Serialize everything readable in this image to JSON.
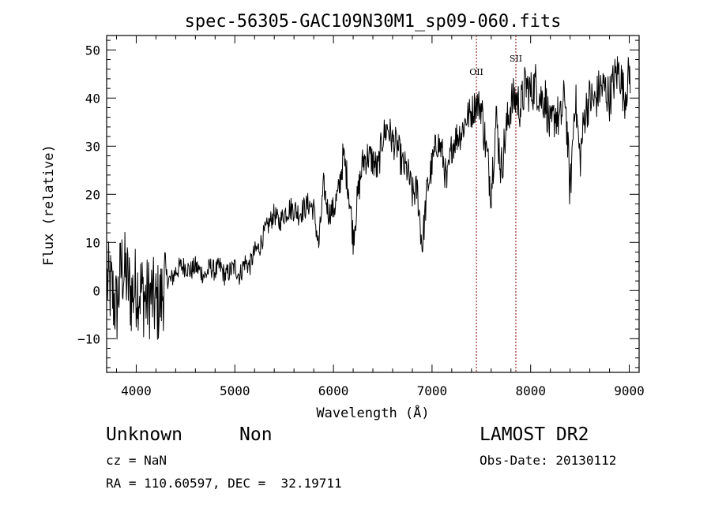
{
  "chart_data": {
    "type": "line",
    "title": "spec-56305-GAC109N30M1_sp09-060.fits",
    "xlabel": "Wavelength (Å)",
    "ylabel": "Flux (relative)",
    "xlim": [
      3700,
      9100
    ],
    "ylim": [
      -17,
      53
    ],
    "x_ticks": [
      4000,
      5000,
      6000,
      7000,
      8000,
      9000
    ],
    "y_ticks": [
      -10,
      0,
      10,
      20,
      30,
      40,
      50
    ],
    "x_tick_labels": [
      "4000",
      "5000",
      "6000",
      "7000",
      "8000",
      "9000"
    ],
    "y_tick_labels": [
      "−10",
      "0",
      "10",
      "20",
      "30",
      "40",
      "50"
    ],
    "grid": false,
    "line_color": "#000000",
    "marker_color": "#8b0000",
    "spectrum": {
      "name": "flux",
      "x": [
        3700,
        3750,
        3800,
        3850,
        3900,
        3950,
        4000,
        4050,
        4100,
        4150,
        4200,
        4250,
        4300,
        4350,
        4400,
        4450,
        4500,
        4550,
        4600,
        4650,
        4700,
        4750,
        4800,
        4850,
        4900,
        4950,
        5000,
        5050,
        5100,
        5150,
        5200,
        5250,
        5300,
        5350,
        5400,
        5450,
        5500,
        5550,
        5600,
        5650,
        5700,
        5750,
        5800,
        5850,
        5900,
        5950,
        6000,
        6050,
        6100,
        6150,
        6200,
        6250,
        6300,
        6350,
        6400,
        6450,
        6500,
        6550,
        6600,
        6650,
        6700,
        6750,
        6800,
        6850,
        6900,
        6950,
        7000,
        7050,
        7100,
        7150,
        7200,
        7250,
        7300,
        7350,
        7400,
        7450,
        7500,
        7550,
        7600,
        7650,
        7700,
        7750,
        7800,
        7850,
        7900,
        7950,
        8000,
        8050,
        8100,
        8150,
        8200,
        8250,
        8300,
        8350,
        8400,
        8450,
        8500,
        8550,
        8600,
        8650,
        8700,
        8750,
        8800,
        8850,
        8900,
        8950,
        9000
      ],
      "y": [
        2,
        0,
        -4,
        5,
        3,
        -1,
        1,
        0,
        -2,
        -1,
        -3,
        -2,
        3,
        2,
        4,
        5,
        5,
        4,
        5,
        4,
        3,
        5,
        4,
        5,
        3,
        4,
        5,
        3,
        6,
        5,
        8,
        9,
        12,
        14,
        16,
        14,
        16,
        17,
        17,
        16,
        17,
        18,
        17,
        9,
        22,
        16,
        17,
        20,
        28,
        22,
        11,
        20,
        27,
        28,
        27,
        25,
        32,
        34,
        31,
        30,
        26,
        25,
        20,
        21,
        9,
        21,
        26,
        31,
        29,
        22,
        30,
        32,
        33,
        36,
        37,
        39,
        38,
        29,
        21,
        36,
        25,
        33,
        39,
        40,
        38,
        43,
        41,
        43,
        40,
        40,
        33,
        37,
        35,
        41,
        20,
        41,
        27,
        37,
        40,
        39,
        42,
        42,
        40,
        44,
        46,
        40,
        45
      ]
    },
    "line_markers": [
      {
        "label": "OII",
        "x": 7450
      },
      {
        "label": "SII",
        "x": 7850
      }
    ]
  },
  "info": {
    "object_class": "Unknown",
    "object_subclass": "Non",
    "redshift": "cz = NaN",
    "coordinates": "RA = 110.60597, DEC =  32.19711",
    "survey": "LAMOST DR2",
    "obs_date": "Obs-Date: 20130112"
  }
}
